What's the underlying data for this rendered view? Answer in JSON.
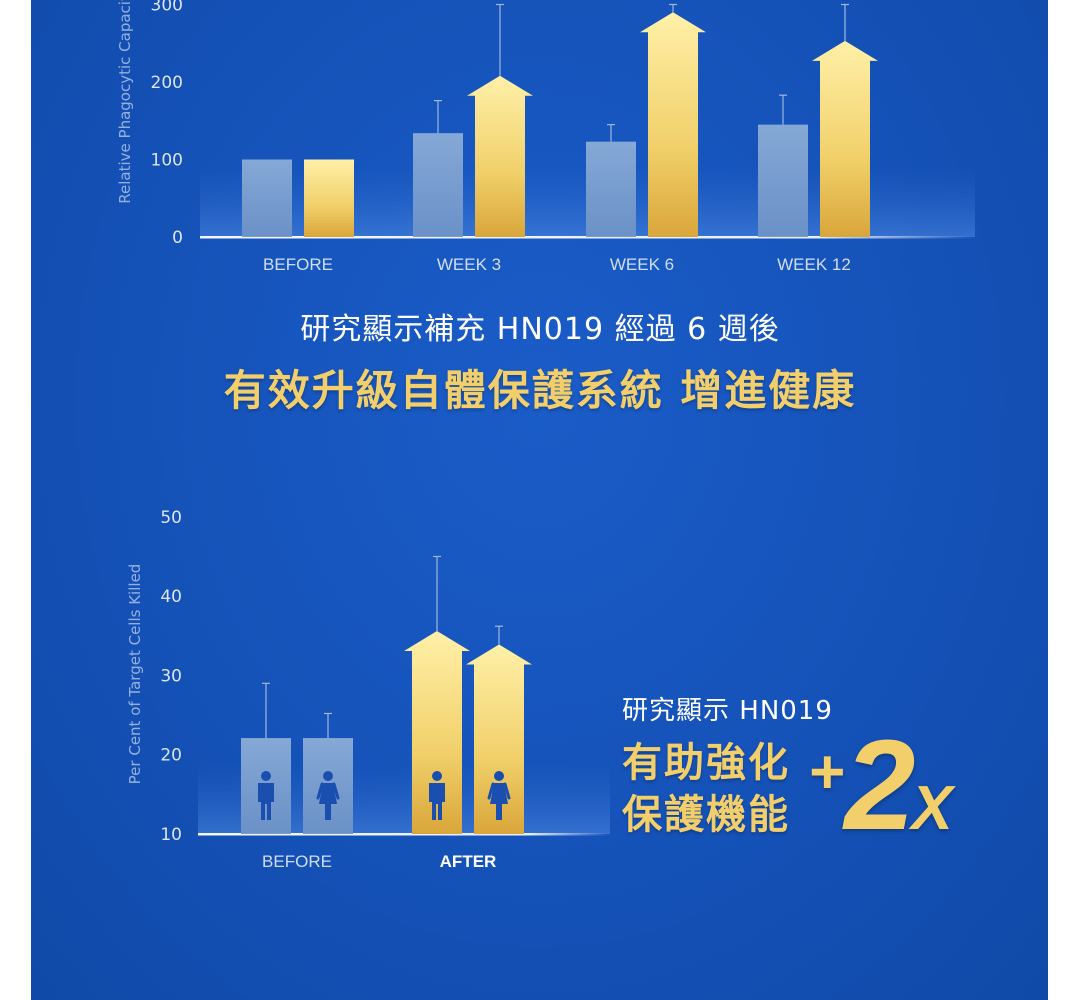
{
  "chart_data": [
    {
      "type": "bar",
      "ylabel": "Relative Phagocytic Capacity",
      "yticks": [
        0,
        100,
        200,
        300
      ],
      "ylim": [
        0,
        300
      ],
      "categories": [
        "BEFORE",
        "WEEK 3",
        "WEEK 6",
        "WEEK 12"
      ],
      "series": [
        {
          "values": [
            100,
            134,
            123,
            145
          ],
          "error_upper": [
            100,
            176,
            145,
            183
          ],
          "color": "#8aaad4"
        },
        {
          "values": [
            100,
            208,
            290,
            253
          ],
          "error_upper": [
            100,
            300,
            300,
            300
          ],
          "color": "#f0d068",
          "arrow": true
        }
      ]
    },
    {
      "type": "bar",
      "ylabel": "Per Cent of Target Cells Killed",
      "yticks": [
        10,
        20,
        30,
        40,
        50
      ],
      "ylim": [
        10,
        50
      ],
      "categories": [
        "BEFORE",
        "AFTER"
      ],
      "series": [
        {
          "values": [
            22.1,
            35.6
          ],
          "error_upper": [
            29,
            45
          ],
          "icon": "man-icon"
        },
        {
          "values": [
            22.1,
            33.9
          ],
          "error_upper": [
            25.2,
            36.2
          ],
          "icon": "woman-icon"
        }
      ],
      "colors": {
        "before": "#8aaad4",
        "after": "#f0d068"
      }
    }
  ],
  "headline": {
    "line1": "研究顯示補充 HN019 經過 6 週後",
    "line2": "有效升級自體保護系統 增進健康"
  },
  "claim": {
    "line1": "研究顯示 HN019",
    "line2": "有助強化",
    "line3": "保護機能"
  },
  "multiplier": {
    "plus": "+",
    "number": "2",
    "suffix": "X"
  },
  "colors": {
    "background": "#1552b8",
    "gold": "#f2cf6a",
    "blue_bar": "#8aaad4",
    "axis": "#ffffff"
  }
}
